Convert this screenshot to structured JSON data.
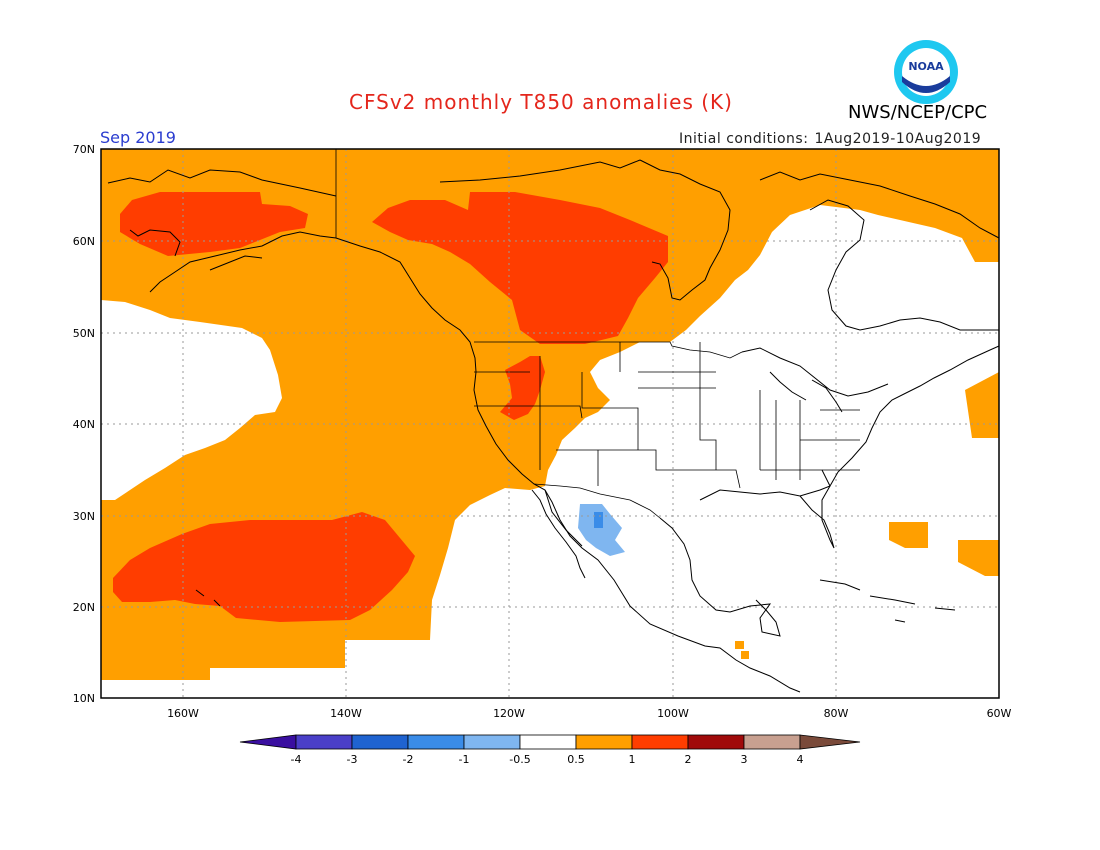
{
  "title": "CFSv2 monthly T850 anomalies (K)",
  "agency": "NWS/NCEP/CPC",
  "logo_text": "NOAA",
  "valid_month": "Sep 2019",
  "initial_conditions": {
    "label": "Initial conditions:",
    "range": "1Aug2019-10Aug2019"
  },
  "axes": {
    "lat_labels": [
      "70N",
      "60N",
      "50N",
      "40N",
      "30N",
      "20N",
      "10N"
    ],
    "lon_labels": [
      "160W",
      "140W",
      "120W",
      "100W",
      "80W",
      "60W"
    ]
  },
  "colorbar": {
    "ticks": [
      "-4",
      "-3",
      "-2",
      "-1",
      "-0.5",
      "0.5",
      "1",
      "2",
      "3",
      "4"
    ],
    "colors": [
      "#3a0fa0",
      "#4a3fc8",
      "#1f63d0",
      "#3a8ce8",
      "#7fb6f0",
      "#ffffff",
      "#ff9f00",
      "#ff3d00",
      "#a00a0a",
      "#c8a090",
      "#7a4a3a"
    ]
  },
  "colors": {
    "anomaly_0_5_to_1": "#ff9f00",
    "anomaly_1_to_2": "#ff3d00",
    "anomaly_minus_1_to_minus_0_5": "#7fb6f0",
    "anomaly_minus_2_to_minus_1": "#3a8ce8"
  }
}
